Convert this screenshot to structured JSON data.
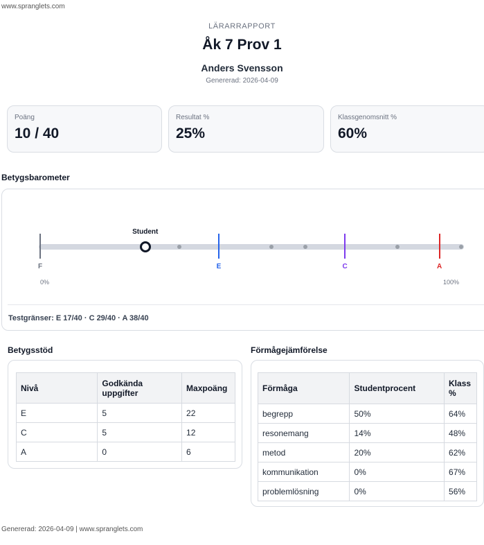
{
  "site": {
    "url": "www.spranglets.com"
  },
  "header": {
    "eyebrow": "LÄRARRAPPORT",
    "title": "Åk 7 Prov 1",
    "student_name": "Anders Svensson",
    "generated": "Genererad: 2026-04-09"
  },
  "stats": [
    {
      "label": "Poäng",
      "value": "10 / 40"
    },
    {
      "label": "Resultat %",
      "value": "25%"
    },
    {
      "label": "Klassgenomsnitt %",
      "value": "60%"
    }
  ],
  "barometer": {
    "title": "Betygsbarometer",
    "student_label": "Student",
    "student_percent": 25,
    "grades": [
      {
        "letter": "F",
        "percent": 0,
        "color": "#6b7280"
      },
      {
        "letter": "E",
        "percent": 42.5,
        "color": "#2563eb"
      },
      {
        "letter": "C",
        "percent": 72.5,
        "color": "#7c3aed"
      },
      {
        "letter": "A",
        "percent": 95,
        "color": "#dc2626"
      }
    ],
    "min_label": "0%",
    "max_label": "100%",
    "limits_text": "Testgränser: E 17/40 · C 29/40 · A 38/40"
  },
  "betygsstod": {
    "title": "Betygsstöd",
    "headers": [
      "Nivå",
      "Godkända uppgifter",
      "Maxpoäng"
    ],
    "rows": [
      [
        "E",
        "5",
        "22"
      ],
      [
        "C",
        "5",
        "12"
      ],
      [
        "A",
        "0",
        "6"
      ]
    ]
  },
  "formaga": {
    "title": "Förmågejämförelse",
    "headers": [
      "Förmåga",
      "Studentprocent",
      "Klass %"
    ],
    "rows": [
      [
        "begrepp",
        "50%",
        "64%"
      ],
      [
        "resonemang",
        "14%",
        "48%"
      ],
      [
        "metod",
        "20%",
        "62%"
      ],
      [
        "kommunikation",
        "0%",
        "67%"
      ],
      [
        "problemlösning",
        "0%",
        "56%"
      ]
    ]
  },
  "footer": {
    "text": "Genererad: 2026-04-09 | www.spranglets.com"
  }
}
